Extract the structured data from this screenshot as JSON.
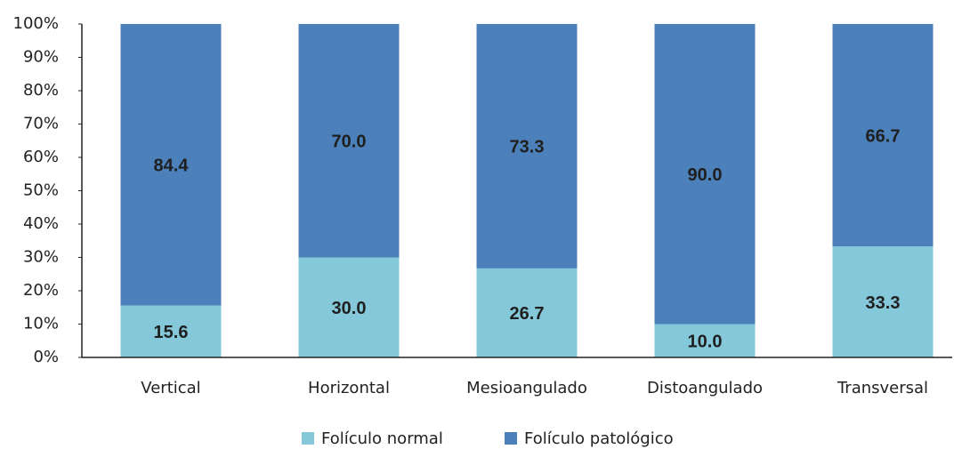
{
  "chart_data": {
    "type": "stacked_bar",
    "categories": [
      "Vertical",
      "Horizontal",
      "Mesioangulado",
      "Distoangulado",
      "Transversal"
    ],
    "series": [
      {
        "name": "Folículo normal",
        "color": "#85c8d9",
        "values": [
          15.6,
          30.0,
          26.7,
          10.0,
          33.3
        ],
        "value_labels": [
          "15.6",
          "30.0",
          "26.7",
          "10.0",
          "33.3"
        ]
      },
      {
        "name": "Folículo patológico",
        "color": "#4b80bb",
        "values": [
          84.4,
          70.0,
          73.3,
          90.0,
          66.7
        ],
        "value_labels": [
          "84.4",
          "70.0",
          "73.3",
          "90.0",
          "66.7"
        ]
      }
    ],
    "ylim": [
      0,
      100
    ],
    "yticks": [
      {
        "value": 0,
        "label": "0%"
      },
      {
        "value": 10,
        "label": "10%"
      },
      {
        "value": 20,
        "label": "20%"
      },
      {
        "value": 30,
        "label": "30%"
      },
      {
        "value": 40,
        "label": "40%"
      },
      {
        "value": 50,
        "label": "50%"
      },
      {
        "value": 60,
        "label": "60%"
      },
      {
        "value": 70,
        "label": "70%"
      },
      {
        "value": 80,
        "label": "80%"
      },
      {
        "value": 90,
        "label": "90%"
      },
      {
        "value": 100,
        "label": "100%"
      }
    ],
    "grid": false,
    "legend": "bottom"
  }
}
